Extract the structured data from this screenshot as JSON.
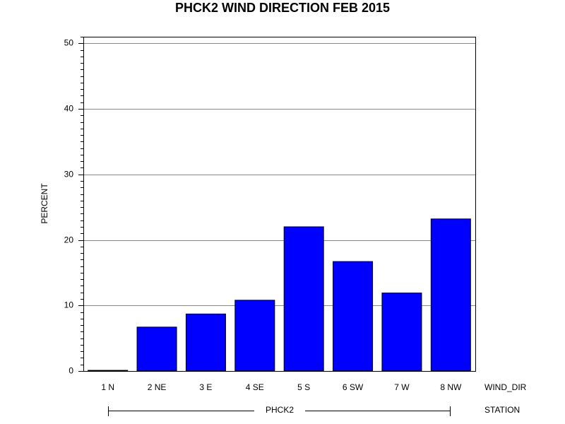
{
  "chart_data": {
    "type": "bar",
    "title": "PHCK2 WIND DIRECTION FEB 2015",
    "y_label": "PERCENT",
    "x_label": "WIND_DIR",
    "group_label": "STATION",
    "group": "PHCK2",
    "categories": [
      "1 N",
      "2 NE",
      "3 E",
      "4 SE",
      "5 S",
      "6 SW",
      "7 W",
      "8 NW"
    ],
    "values": [
      0.1,
      6.7,
      8.7,
      10.8,
      22.0,
      16.7,
      11.9,
      23.2
    ],
    "color": "#0000ff",
    "ylim": [
      0,
      51
    ],
    "yticks": [
      0,
      10,
      20,
      30,
      40,
      50
    ],
    "yminor_ticks": [
      1,
      2,
      3,
      4,
      5,
      6,
      7,
      8,
      9,
      11,
      12,
      13,
      14,
      15,
      16,
      17,
      18,
      19,
      21,
      22,
      23,
      24,
      25,
      26,
      27,
      28,
      29,
      31,
      32,
      33,
      34,
      35,
      36,
      37,
      38,
      39,
      41,
      42,
      43,
      44,
      45,
      46,
      47,
      48,
      49,
      51
    ],
    "grid": true
  }
}
